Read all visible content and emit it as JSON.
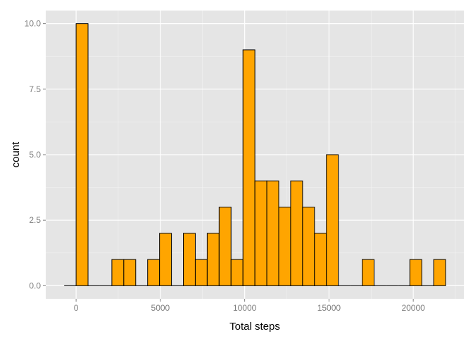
{
  "chart_data": {
    "type": "bar",
    "xlabel": "Total steps",
    "ylabel": "count",
    "xlim": [
      -1800,
      23000
    ],
    "ylim": [
      -0.5,
      10.5
    ],
    "x_ticks": [
      0,
      5000,
      10000,
      15000,
      20000
    ],
    "x_tick_labels": [
      "0",
      "5000",
      "10000",
      "15000",
      "20000"
    ],
    "y_ticks": [
      0.0,
      2.5,
      5.0,
      7.5,
      10.0
    ],
    "y_tick_labels": [
      "0.0",
      "2.5",
      "5.0",
      "7.5",
      "10.0"
    ],
    "grid": true,
    "bin_width": 707,
    "bins": [
      {
        "start": -707,
        "end": 0,
        "count": 0
      },
      {
        "start": 0,
        "end": 707,
        "count": 10
      },
      {
        "start": 707,
        "end": 1414,
        "count": 0
      },
      {
        "start": 1414,
        "end": 2121,
        "count": 0
      },
      {
        "start": 2121,
        "end": 2828,
        "count": 1
      },
      {
        "start": 2828,
        "end": 3535,
        "count": 1
      },
      {
        "start": 3535,
        "end": 4242,
        "count": 0
      },
      {
        "start": 4242,
        "end": 4949,
        "count": 1
      },
      {
        "start": 4949,
        "end": 5656,
        "count": 2
      },
      {
        "start": 5656,
        "end": 6363,
        "count": 0
      },
      {
        "start": 6363,
        "end": 7070,
        "count": 2
      },
      {
        "start": 7070,
        "end": 7777,
        "count": 1
      },
      {
        "start": 7777,
        "end": 8484,
        "count": 2
      },
      {
        "start": 8484,
        "end": 9191,
        "count": 3
      },
      {
        "start": 9191,
        "end": 9898,
        "count": 1
      },
      {
        "start": 9898,
        "end": 10605,
        "count": 9
      },
      {
        "start": 10605,
        "end": 11312,
        "count": 4
      },
      {
        "start": 11312,
        "end": 12019,
        "count": 4
      },
      {
        "start": 12019,
        "end": 12726,
        "count": 3
      },
      {
        "start": 12726,
        "end": 13433,
        "count": 4
      },
      {
        "start": 13433,
        "end": 14140,
        "count": 3
      },
      {
        "start": 14140,
        "end": 14847,
        "count": 2
      },
      {
        "start": 14847,
        "end": 15554,
        "count": 5
      },
      {
        "start": 15554,
        "end": 16261,
        "count": 0
      },
      {
        "start": 16261,
        "end": 16968,
        "count": 0
      },
      {
        "start": 16968,
        "end": 17675,
        "count": 1
      },
      {
        "start": 17675,
        "end": 18382,
        "count": 0
      },
      {
        "start": 18382,
        "end": 19089,
        "count": 0
      },
      {
        "start": 19089,
        "end": 19796,
        "count": 0
      },
      {
        "start": 19796,
        "end": 20503,
        "count": 1
      },
      {
        "start": 20503,
        "end": 21210,
        "count": 0
      },
      {
        "start": 21210,
        "end": 21917,
        "count": 1
      }
    ]
  },
  "colors": {
    "panel_background": "#e5e5e5",
    "grid_major": "#ffffff",
    "grid_minor": "#f2f2f2",
    "bar_fill": "#ffa500",
    "bar_outline": "#000000",
    "tick_text": "#7f7f7f"
  }
}
